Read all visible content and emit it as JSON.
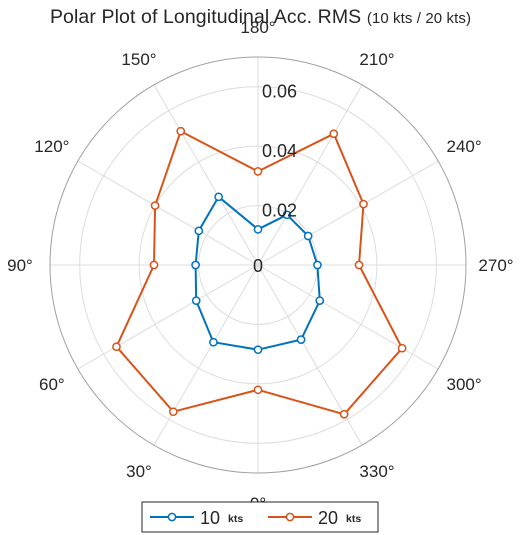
{
  "chart_data": {
    "type": "polar-line",
    "title": "Polar Plot of Longitudinal Acc. RMS",
    "title_suffix": "(10 kts / 20 kts)",
    "theta_zero_location": "bottom",
    "theta_direction": "clockwise",
    "theta_ticks": [
      "0°",
      "30°",
      "60°",
      "90°",
      "120°",
      "150°",
      "180°",
      "210°",
      "240°",
      "270°",
      "300°",
      "330°"
    ],
    "r_ticks": [
      "0",
      "0.02",
      "0.04",
      "0.06"
    ],
    "rlim": [
      0,
      0.07
    ],
    "grid": true,
    "legend_position": "bottom",
    "theta": [
      0,
      30,
      60,
      90,
      120,
      150,
      180,
      210,
      240,
      270,
      300,
      330
    ],
    "series": [
      {
        "name": "10",
        "unit": "kts",
        "color": "#0072BD",
        "marker": "circle",
        "r": [
          0.0285,
          0.03,
          0.024,
          0.021,
          0.023,
          0.0265,
          0.012,
          0.0195,
          0.0195,
          0.02,
          0.024,
          0.029,
          0.0285
        ]
      },
      {
        "name": "20",
        "unit": "kts",
        "color": "#D95319",
        "marker": "circle",
        "r": [
          0.042,
          0.057,
          0.055,
          0.035,
          0.04,
          0.052,
          0.0315,
          0.051,
          0.041,
          0.034,
          0.056,
          0.058,
          0.042
        ]
      }
    ]
  }
}
